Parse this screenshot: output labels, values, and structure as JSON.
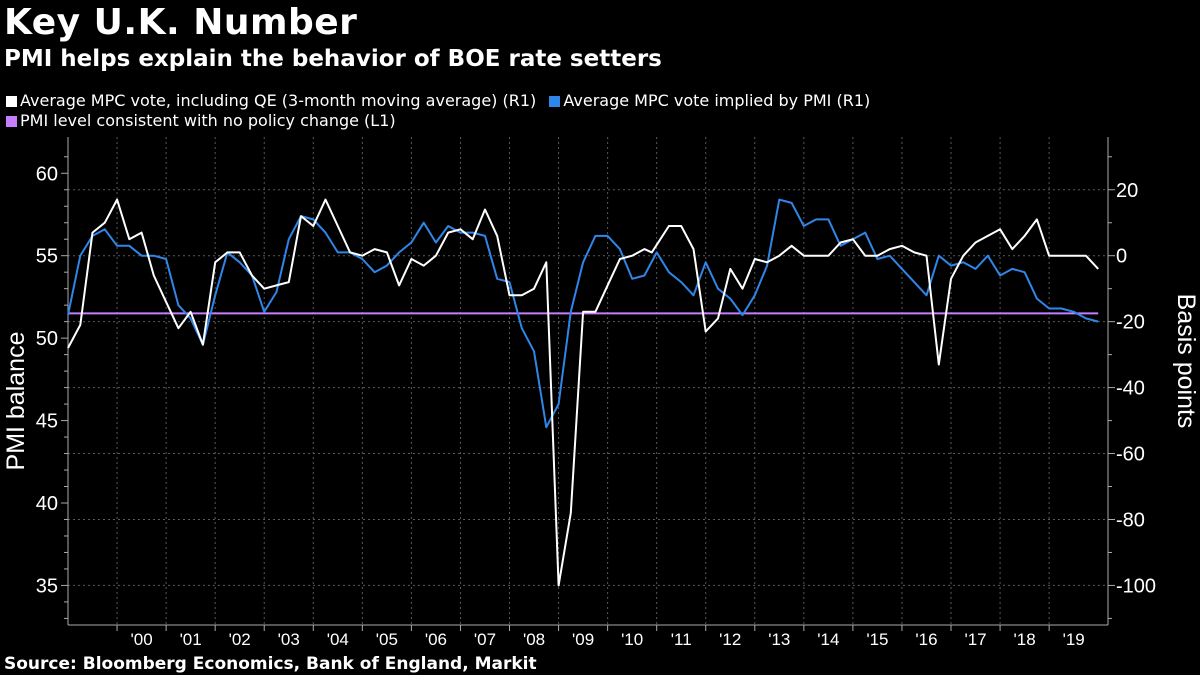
{
  "title": "Key U.K. Number",
  "subtitle": "PMI helps explain the behavior of BOE rate setters",
  "source": "Source: Bloomberg Economics, Bank of England, Markit",
  "legend": [
    {
      "label": "Average MPC vote, including QE (3-month moving average) (R1)",
      "color": "#ffffff"
    },
    {
      "label": "Average MPC vote implied by PMI  (R1)",
      "color": "#2f86e8"
    },
    {
      "label": "PMI level consistent with no policy change (L1)",
      "color": "#c77dff"
    }
  ],
  "chart_data": {
    "type": "line",
    "grid": true,
    "left_axis": {
      "label": "PMI balance",
      "range": [
        32.6,
        62.2
      ],
      "ticks": [
        35,
        40,
        45,
        50,
        55,
        60
      ]
    },
    "right_axis": {
      "label": "Basis points",
      "range": [
        -112,
        36
      ],
      "ticks": [
        20,
        0,
        -20,
        -40,
        -60,
        -80,
        -100
      ]
    },
    "x_range": [
      1999.0,
      2020.2
    ],
    "x_ticks": [
      {
        "label": "'00",
        "year": 2000
      },
      {
        "label": "'01",
        "year": 2001
      },
      {
        "label": "'02",
        "year": 2002
      },
      {
        "label": "'03",
        "year": 2003
      },
      {
        "label": "'04",
        "year": 2004
      },
      {
        "label": "'05",
        "year": 2005
      },
      {
        "label": "'06",
        "year": 2006
      },
      {
        "label": "'07",
        "year": 2007
      },
      {
        "label": "'08",
        "year": 2008
      },
      {
        "label": "'09",
        "year": 2009
      },
      {
        "label": "'10",
        "year": 2010
      },
      {
        "label": "'11",
        "year": 2011
      },
      {
        "label": "'12",
        "year": 2012
      },
      {
        "label": "'13",
        "year": 2013
      },
      {
        "label": "'14",
        "year": 2014
      },
      {
        "label": "'15",
        "year": 2015
      },
      {
        "label": "'16",
        "year": 2016
      },
      {
        "label": "'17",
        "year": 2017
      },
      {
        "label": "'18",
        "year": 2018
      },
      {
        "label": "'19",
        "year": 2019
      }
    ],
    "series": [
      {
        "name": "Average MPC vote, including QE (3-month moving average) (R1)",
        "axis": "right",
        "color": "#ffffff",
        "points": [
          [
            1999.0,
            -28
          ],
          [
            1999.25,
            -21
          ],
          [
            1999.5,
            7
          ],
          [
            1999.75,
            10
          ],
          [
            2000.0,
            17
          ],
          [
            2000.25,
            5
          ],
          [
            2000.5,
            7
          ],
          [
            2000.75,
            -6
          ],
          [
            2001.0,
            -14
          ],
          [
            2001.25,
            -22
          ],
          [
            2001.5,
            -17
          ],
          [
            2001.75,
            -27
          ],
          [
            2002.0,
            -2
          ],
          [
            2002.25,
            1
          ],
          [
            2002.5,
            1
          ],
          [
            2002.75,
            -6
          ],
          [
            2003.0,
            -10
          ],
          [
            2003.25,
            -9
          ],
          [
            2003.5,
            -8
          ],
          [
            2003.75,
            12
          ],
          [
            2004.0,
            9
          ],
          [
            2004.25,
            17
          ],
          [
            2004.5,
            9
          ],
          [
            2004.75,
            1
          ],
          [
            2005.0,
            0
          ],
          [
            2005.25,
            2
          ],
          [
            2005.5,
            1
          ],
          [
            2005.75,
            -9
          ],
          [
            2006.0,
            -1
          ],
          [
            2006.25,
            -3
          ],
          [
            2006.5,
            0
          ],
          [
            2006.75,
            7
          ],
          [
            2007.0,
            8
          ],
          [
            2007.25,
            5
          ],
          [
            2007.5,
            14
          ],
          [
            2007.75,
            6
          ],
          [
            2008.0,
            -12
          ],
          [
            2008.25,
            -12
          ],
          [
            2008.5,
            -10
          ],
          [
            2008.75,
            -2
          ],
          [
            2009.0,
            -100
          ],
          [
            2009.25,
            -78
          ],
          [
            2009.5,
            -17
          ],
          [
            2009.75,
            -17
          ],
          [
            2010.0,
            -9
          ],
          [
            2010.25,
            -1
          ],
          [
            2010.5,
            0
          ],
          [
            2010.75,
            2
          ],
          [
            2010.9,
            1
          ],
          [
            2011.25,
            9
          ],
          [
            2011.5,
            9
          ],
          [
            2011.75,
            2
          ],
          [
            2012.0,
            -23
          ],
          [
            2012.25,
            -19
          ],
          [
            2012.5,
            -4
          ],
          [
            2012.75,
            -10
          ],
          [
            2013.0,
            -1
          ],
          [
            2013.25,
            -2
          ],
          [
            2013.5,
            0
          ],
          [
            2013.75,
            3
          ],
          [
            2014.0,
            0
          ],
          [
            2014.25,
            0
          ],
          [
            2014.5,
            0
          ],
          [
            2014.75,
            4
          ],
          [
            2015.0,
            5
          ],
          [
            2015.25,
            0
          ],
          [
            2015.5,
            0
          ],
          [
            2015.75,
            2
          ],
          [
            2016.0,
            3
          ],
          [
            2016.25,
            1
          ],
          [
            2016.5,
            0
          ],
          [
            2016.75,
            -33
          ],
          [
            2017.0,
            -7
          ],
          [
            2017.25,
            0
          ],
          [
            2017.5,
            4
          ],
          [
            2017.75,
            6
          ],
          [
            2018.0,
            8
          ],
          [
            2018.25,
            2
          ],
          [
            2018.5,
            6
          ],
          [
            2018.75,
            11
          ],
          [
            2019.0,
            0
          ],
          [
            2019.25,
            0
          ],
          [
            2019.5,
            0
          ],
          [
            2019.75,
            0
          ],
          [
            2020.0,
            -4
          ]
        ]
      },
      {
        "name": "Average MPC vote implied by PMI  (R1)",
        "axis": "right",
        "color": "#2f86e8",
        "points": [
          [
            1999.0,
            -18
          ],
          [
            1999.25,
            0
          ],
          [
            1999.5,
            6
          ],
          [
            1999.75,
            8
          ],
          [
            2000.0,
            3
          ],
          [
            2000.25,
            3
          ],
          [
            2000.5,
            0
          ],
          [
            2000.75,
            0
          ],
          [
            2001.0,
            -1
          ],
          [
            2001.25,
            -15
          ],
          [
            2001.5,
            -19
          ],
          [
            2001.75,
            -27
          ],
          [
            2002.0,
            -12
          ],
          [
            2002.25,
            1
          ],
          [
            2002.5,
            -2
          ],
          [
            2002.75,
            -6
          ],
          [
            2003.0,
            -17
          ],
          [
            2003.25,
            -11
          ],
          [
            2003.5,
            5
          ],
          [
            2003.75,
            12
          ],
          [
            2004.0,
            11
          ],
          [
            2004.25,
            7
          ],
          [
            2004.5,
            1
          ],
          [
            2004.75,
            1
          ],
          [
            2005.0,
            -1
          ],
          [
            2005.25,
            -5
          ],
          [
            2005.5,
            -3
          ],
          [
            2005.75,
            1
          ],
          [
            2006.0,
            4
          ],
          [
            2006.25,
            10
          ],
          [
            2006.5,
            4
          ],
          [
            2006.75,
            9
          ],
          [
            2007.0,
            7
          ],
          [
            2007.25,
            7
          ],
          [
            2007.5,
            6
          ],
          [
            2007.75,
            -7
          ],
          [
            2008.0,
            -8
          ],
          [
            2008.25,
            -22
          ],
          [
            2008.5,
            -29
          ],
          [
            2008.75,
            -52
          ],
          [
            2009.0,
            -45
          ],
          [
            2009.25,
            -17
          ],
          [
            2009.5,
            -2
          ],
          [
            2009.75,
            6
          ],
          [
            2010.0,
            6
          ],
          [
            2010.25,
            2
          ],
          [
            2010.5,
            -7
          ],
          [
            2010.75,
            -6
          ],
          [
            2011.0,
            1
          ],
          [
            2011.25,
            -5
          ],
          [
            2011.5,
            -8
          ],
          [
            2011.75,
            -12
          ],
          [
            2012.0,
            -2
          ],
          [
            2012.25,
            -10
          ],
          [
            2012.5,
            -13
          ],
          [
            2012.75,
            -18
          ],
          [
            2013.0,
            -12
          ],
          [
            2013.25,
            -3
          ],
          [
            2013.5,
            17
          ],
          [
            2013.75,
            16
          ],
          [
            2014.0,
            9
          ],
          [
            2014.25,
            11
          ],
          [
            2014.5,
            11
          ],
          [
            2014.75,
            3
          ],
          [
            2015.0,
            5
          ],
          [
            2015.25,
            7
          ],
          [
            2015.5,
            -1
          ],
          [
            2015.75,
            0
          ],
          [
            2016.0,
            -4
          ],
          [
            2016.25,
            -8
          ],
          [
            2016.5,
            -12
          ],
          [
            2016.75,
            0
          ],
          [
            2017.0,
            -3
          ],
          [
            2017.25,
            -2
          ],
          [
            2017.5,
            -4
          ],
          [
            2017.75,
            0
          ],
          [
            2018.0,
            -6
          ],
          [
            2018.25,
            -4
          ],
          [
            2018.5,
            -5
          ],
          [
            2018.75,
            -13
          ],
          [
            2019.0,
            -16
          ],
          [
            2019.25,
            -16
          ],
          [
            2019.5,
            -17
          ],
          [
            2019.75,
            -19
          ],
          [
            2020.0,
            -20
          ]
        ]
      },
      {
        "name": "PMI level consistent with no policy change (L1)",
        "axis": "left",
        "color": "#c77dff",
        "points": [
          [
            1999.0,
            51.5
          ],
          [
            2020.0,
            51.5
          ]
        ]
      }
    ]
  }
}
